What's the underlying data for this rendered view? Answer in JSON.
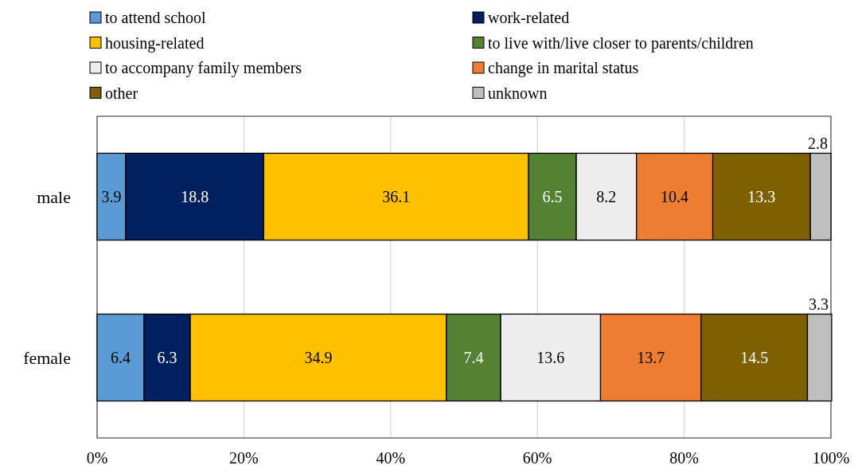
{
  "chart_data": {
    "type": "bar",
    "orientation": "horizontal",
    "stacked": true,
    "categories": [
      "male",
      "female"
    ],
    "series": [
      {
        "name": "to attend school",
        "color": "#5b9bd5",
        "values": [
          3.9,
          6.4
        ]
      },
      {
        "name": "work-related",
        "color": "#002060",
        "values": [
          18.8,
          6.3
        ]
      },
      {
        "name": "housing-related",
        "color": "#ffc000",
        "values": [
          36.1,
          34.9
        ]
      },
      {
        "name": "to live with/live closer to parents/children",
        "color": "#548235",
        "values": [
          6.5,
          7.4
        ]
      },
      {
        "name": "to accompany family members",
        "color": "#ededed",
        "values": [
          8.2,
          13.6
        ]
      },
      {
        "name": "change in marital status",
        "color": "#ed7d31",
        "values": [
          10.4,
          13.7
        ]
      },
      {
        "name": "other",
        "color": "#7f6000",
        "values": [
          13.3,
          14.5
        ]
      },
      {
        "name": "unknown",
        "color": "#bfbfbf",
        "values": [
          2.8,
          3.3
        ]
      }
    ],
    "xlim": [
      0,
      100
    ],
    "xticks": [
      {
        "value": 0,
        "label": "0%"
      },
      {
        "value": 20,
        "label": "20%"
      },
      {
        "value": 40,
        "label": "40%"
      },
      {
        "value": 60,
        "label": "60%"
      },
      {
        "value": 80,
        "label": "80%"
      },
      {
        "value": 100,
        "label": "100%"
      }
    ],
    "grid": "x",
    "legend": "top",
    "data_labels": true
  }
}
